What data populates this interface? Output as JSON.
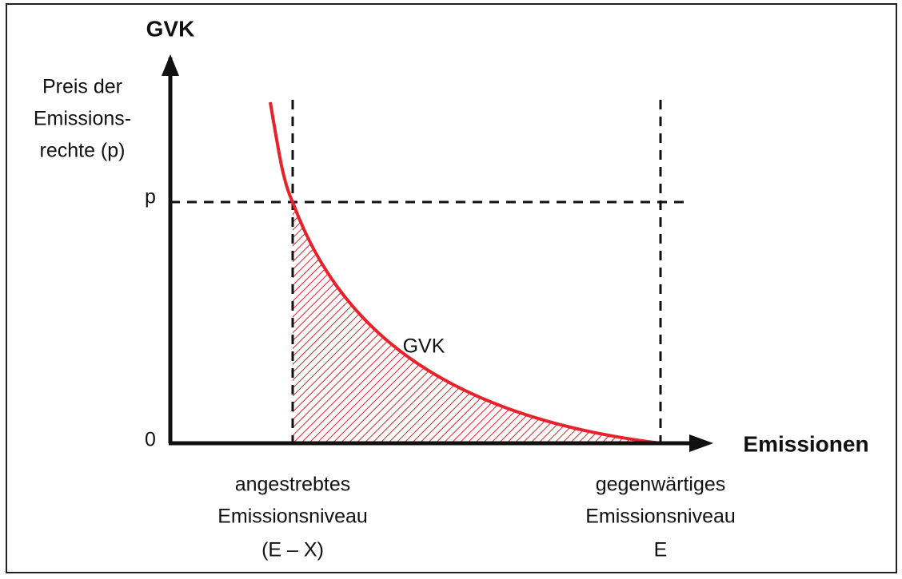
{
  "y_axis": {
    "title": "GVK",
    "label_lines": [
      "Preis der",
      "Emissions-",
      "rechte (p)"
    ]
  },
  "x_axis": {
    "title": "Emissionen"
  },
  "y_ticks": [
    "p",
    "0"
  ],
  "curve_label": "GVK",
  "x_markers": [
    {
      "lines": [
        "angestrebtes",
        "Emissionsniveau",
        "(E – X)"
      ]
    },
    {
      "lines": [
        "gegenwärtiges",
        "Emissionsniveau",
        "E"
      ]
    }
  ]
}
